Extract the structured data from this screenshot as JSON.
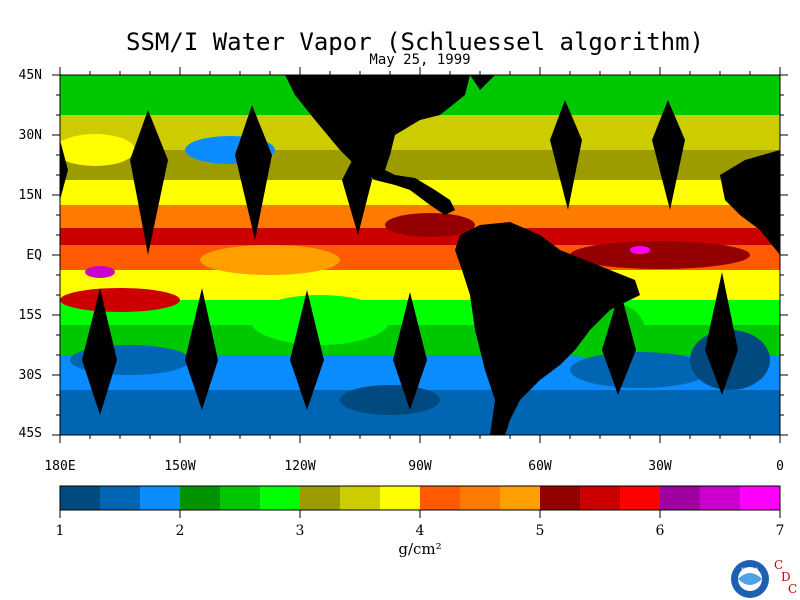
{
  "title": "SSM/I Water Vapor (Schluessel algorithm)",
  "date": "May 25, 1999",
  "latitude_labels": [
    "45N",
    "30N",
    "15N",
    "EQ",
    "15S",
    "30S",
    "45S"
  ],
  "longitude_labels": [
    "180E",
    "150W",
    "120W",
    "90W",
    "60W",
    "30W",
    "0"
  ],
  "colorbar": {
    "tick_labels": [
      "1",
      "2",
      "3",
      "4",
      "5",
      "6",
      "7"
    ],
    "units": "g/cm²",
    "colors": [
      "#004a80",
      "#0066b3",
      "#0a8cff",
      "#009400",
      "#00c800",
      "#00ff00",
      "#9c9c00",
      "#cccc00",
      "#ffff00",
      "#ff5a00",
      "#ff7a00",
      "#ffa000",
      "#940000",
      "#cc0000",
      "#ff0000",
      "#a000a0",
      "#cc00cc",
      "#ff00ff"
    ]
  },
  "land_color": "#000000",
  "logo": {
    "agency": "NOAA",
    "letters": [
      "C",
      "D",
      "C"
    ],
    "letter_color": "#cc0000"
  }
}
